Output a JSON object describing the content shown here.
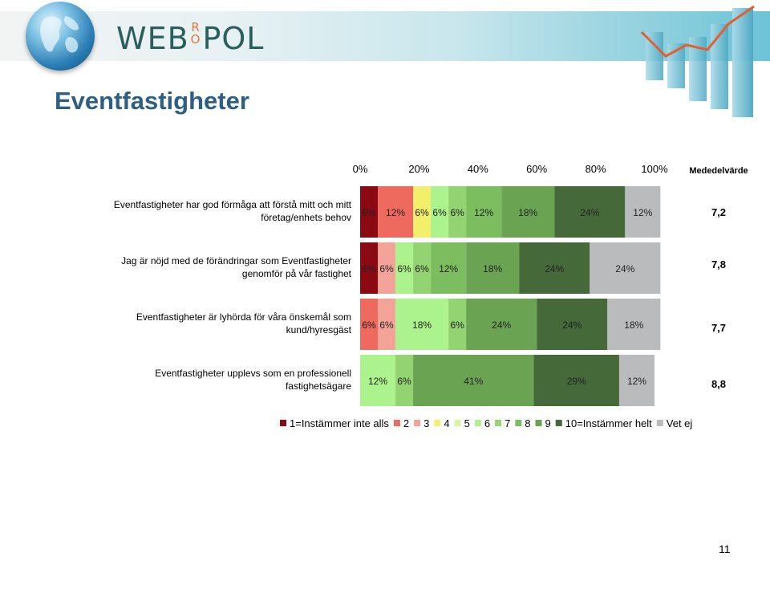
{
  "header": {
    "logo_text_left": "WEB",
    "logo_text_ro_top": "R",
    "logo_text_ro_bottom": "O",
    "logo_text_right": "POL"
  },
  "page_title": "Eventfastigheter",
  "page_number": "11",
  "colors": {
    "banner_accent": "#6cc3d6",
    "title": "#2d5f86"
  },
  "chart_data": {
    "type": "bar",
    "orientation": "horizontal-stacked-100",
    "x_ticks": [
      "0%",
      "20%",
      "40%",
      "60%",
      "80%",
      "100%"
    ],
    "xlim": [
      0,
      100
    ],
    "mean_header": "Mededelvärde",
    "legend_position": "bottom",
    "series": [
      {
        "name": "1=Instämmer inte alls",
        "color": "#8b0a12"
      },
      {
        "name": "2",
        "color": "#ee6a5f"
      },
      {
        "name": "3",
        "color": "#f4a399"
      },
      {
        "name": "4",
        "color": "#f2ef6d"
      },
      {
        "name": "5",
        "color": "#d8f5a1"
      },
      {
        "name": "6",
        "color": "#acf28d"
      },
      {
        "name": "7",
        "color": "#93d372"
      },
      {
        "name": "8",
        "color": "#7cbd5f"
      },
      {
        "name": "9",
        "color": "#6aa453"
      },
      {
        "name": "10=Instämmer helt",
        "color": "#456939"
      },
      {
        "name": "Vet ej",
        "color": "#b9bbbd"
      }
    ],
    "rows": [
      {
        "label_line1": "Eventfastigheter har god förmåga att förstå mitt och mitt",
        "label_line2": "företag/enhets behov",
        "mean": "7,2",
        "segments": [
          {
            "series": 0,
            "value": 6,
            "label": "6%"
          },
          {
            "series": 1,
            "value": 12,
            "label": "12%"
          },
          {
            "series": 3,
            "value": 6,
            "label": "6%"
          },
          {
            "series": 5,
            "value": 6,
            "label": "6%"
          },
          {
            "series": 6,
            "value": 6,
            "label": "6%"
          },
          {
            "series": 7,
            "value": 12,
            "label": "12%"
          },
          {
            "series": 8,
            "value": 18,
            "label": "18%"
          },
          {
            "series": 9,
            "value": 24,
            "label": "24%"
          },
          {
            "series": 10,
            "value": 12,
            "label": "12%"
          }
        ]
      },
      {
        "label_line1": "Jag är nöjd med de förändringar som Eventfastigheter",
        "label_line2": "genomför på vår fastighet",
        "mean": "7,8",
        "segments": [
          {
            "series": 0,
            "value": 6,
            "label": "6%"
          },
          {
            "series": 2,
            "value": 6,
            "label": "6%"
          },
          {
            "series": 5,
            "value": 6,
            "label": "6%"
          },
          {
            "series": 6,
            "value": 6,
            "label": "6%"
          },
          {
            "series": 7,
            "value": 12,
            "label": "12%"
          },
          {
            "series": 8,
            "value": 18,
            "label": "18%"
          },
          {
            "series": 9,
            "value": 24,
            "label": "24%"
          },
          {
            "series": 10,
            "value": 24,
            "label": "24%"
          }
        ]
      },
      {
        "label_line1": "Eventfastigheter är lyhörda för våra önskemål som",
        "label_line2": "kund/hyresgäst",
        "mean": "7,7",
        "segments": [
          {
            "series": 1,
            "value": 6,
            "label": "6%"
          },
          {
            "series": 2,
            "value": 6,
            "label": "6%"
          },
          {
            "series": 5,
            "value": 18,
            "label": "18%"
          },
          {
            "series": 6,
            "value": 6,
            "label": "6%"
          },
          {
            "series": 8,
            "value": 24,
            "label": "24%"
          },
          {
            "series": 9,
            "value": 24,
            "label": "24%"
          },
          {
            "series": 10,
            "value": 18,
            "label": "18%"
          }
        ]
      },
      {
        "label_line1": "Eventfastigheter upplevs som en professionell",
        "label_line2": "fastighetsägare",
        "mean": "8,8",
        "segments": [
          {
            "series": 5,
            "value": 12,
            "label": "12%"
          },
          {
            "series": 6,
            "value": 6,
            "label": "6%"
          },
          {
            "series": 8,
            "value": 41,
            "label": "41%"
          },
          {
            "series": 9,
            "value": 29,
            "label": "29%"
          },
          {
            "series": 10,
            "value": 12,
            "label": "12%"
          }
        ]
      }
    ]
  }
}
